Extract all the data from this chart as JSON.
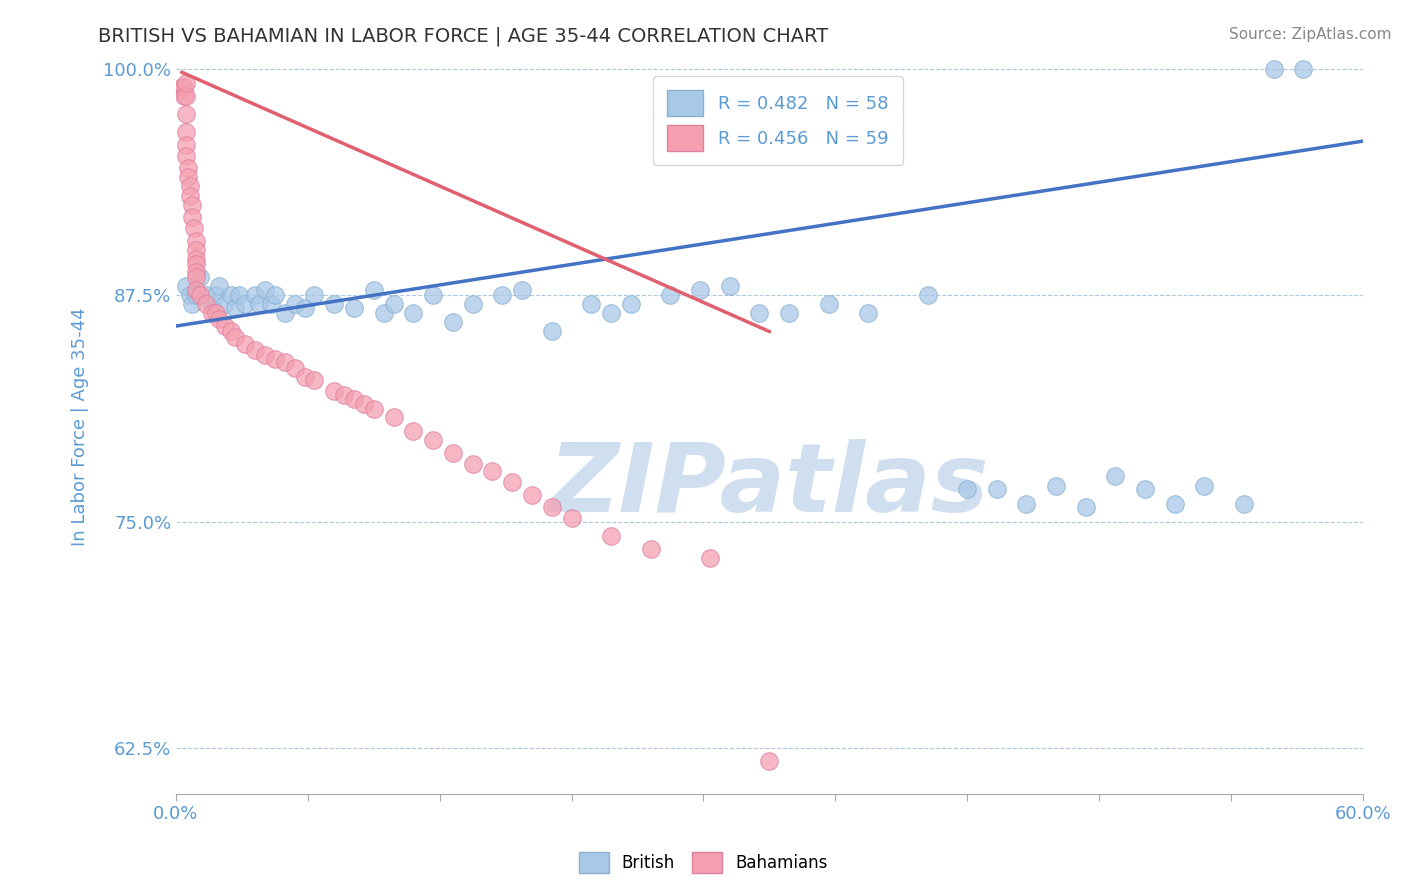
{
  "title": "BRITISH VS BAHAMIAN IN LABOR FORCE | AGE 35-44 CORRELATION CHART",
  "source_text": "Source: ZipAtlas.com",
  "ylabel": "In Labor Force | Age 35-44",
  "xlim": [
    0.0,
    0.6
  ],
  "ylim": [
    0.6,
    1.005
  ],
  "legend_R_blue": "R = 0.482",
  "legend_N_blue": "N = 58",
  "legend_R_pink": "R = 0.456",
  "legend_N_pink": "N = 59",
  "blue_color": "#a8c8e8",
  "pink_color": "#f4a0b0",
  "blue_line_color": "#4472c4",
  "pink_line_color": "#e06070",
  "watermark_color": "#d0dff0",
  "axis_color": "#5b9bd5",
  "blue_scatter_x": [
    0.005,
    0.007,
    0.008,
    0.01,
    0.012,
    0.015,
    0.018,
    0.02,
    0.022,
    0.025,
    0.028,
    0.03,
    0.032,
    0.035,
    0.04,
    0.042,
    0.045,
    0.048,
    0.05,
    0.055,
    0.06,
    0.065,
    0.07,
    0.08,
    0.09,
    0.1,
    0.105,
    0.11,
    0.12,
    0.13,
    0.14,
    0.15,
    0.165,
    0.175,
    0.19,
    0.21,
    0.22,
    0.23,
    0.25,
    0.265,
    0.28,
    0.295,
    0.31,
    0.33,
    0.35,
    0.38,
    0.4,
    0.415,
    0.43,
    0.445,
    0.46,
    0.475,
    0.49,
    0.505,
    0.52,
    0.54,
    0.555,
    0.57
  ],
  "blue_scatter_y": [
    0.88,
    0.875,
    0.87,
    0.875,
    0.885,
    0.875,
    0.87,
    0.875,
    0.88,
    0.87,
    0.875,
    0.868,
    0.875,
    0.87,
    0.875,
    0.87,
    0.878,
    0.87,
    0.875,
    0.865,
    0.87,
    0.868,
    0.875,
    0.87,
    0.868,
    0.878,
    0.865,
    0.87,
    0.865,
    0.875,
    0.86,
    0.87,
    0.875,
    0.878,
    0.855,
    0.87,
    0.865,
    0.87,
    0.875,
    0.878,
    0.88,
    0.865,
    0.865,
    0.87,
    0.865,
    0.875,
    0.768,
    0.768,
    0.76,
    0.77,
    0.758,
    0.775,
    0.768,
    0.76,
    0.77,
    0.76,
    1.0,
    1.0
  ],
  "pink_scatter_x": [
    0.003,
    0.003,
    0.004,
    0.004,
    0.005,
    0.005,
    0.005,
    0.005,
    0.005,
    0.005,
    0.006,
    0.006,
    0.007,
    0.007,
    0.008,
    0.008,
    0.009,
    0.01,
    0.01,
    0.01,
    0.01,
    0.01,
    0.01,
    0.01,
    0.012,
    0.015,
    0.018,
    0.02,
    0.022,
    0.025,
    0.028,
    0.03,
    0.035,
    0.04,
    0.045,
    0.05,
    0.055,
    0.06,
    0.065,
    0.07,
    0.08,
    0.085,
    0.09,
    0.095,
    0.1,
    0.11,
    0.12,
    0.13,
    0.14,
    0.15,
    0.16,
    0.17,
    0.18,
    0.19,
    0.2,
    0.22,
    0.24,
    0.27,
    0.3
  ],
  "pink_scatter_y": [
    0.99,
    0.988,
    0.99,
    0.985,
    0.985,
    0.992,
    0.975,
    0.965,
    0.958,
    0.952,
    0.945,
    0.94,
    0.935,
    0.93,
    0.925,
    0.918,
    0.912,
    0.905,
    0.9,
    0.895,
    0.892,
    0.888,
    0.885,
    0.878,
    0.875,
    0.87,
    0.865,
    0.865,
    0.862,
    0.858,
    0.855,
    0.852,
    0.848,
    0.845,
    0.842,
    0.84,
    0.838,
    0.835,
    0.83,
    0.828,
    0.822,
    0.82,
    0.818,
    0.815,
    0.812,
    0.808,
    0.8,
    0.795,
    0.788,
    0.782,
    0.778,
    0.772,
    0.765,
    0.758,
    0.752,
    0.742,
    0.735,
    0.73,
    0.618
  ],
  "blue_line_x": [
    0.0,
    0.6
  ],
  "blue_line_y": [
    0.858,
    0.96
  ],
  "pink_line_x": [
    0.003,
    0.3
  ],
  "pink_line_y": [
    0.998,
    0.855
  ]
}
